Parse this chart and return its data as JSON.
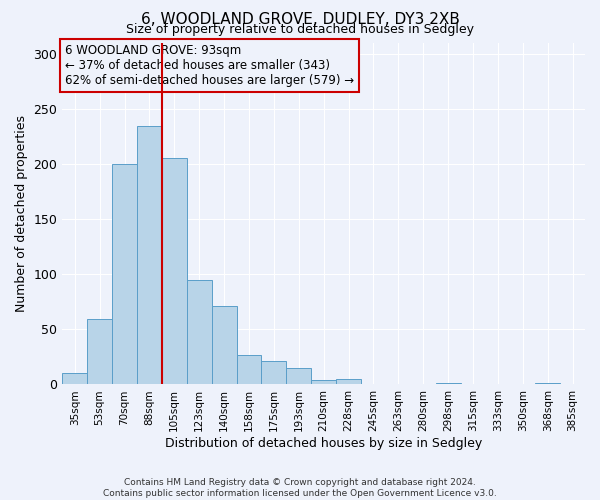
{
  "title": "6, WOODLAND GROVE, DUDLEY, DY3 2XB",
  "subtitle": "Size of property relative to detached houses in Sedgley",
  "xlabel": "Distribution of detached houses by size in Sedgley",
  "ylabel": "Number of detached properties",
  "footer_line1": "Contains HM Land Registry data © Crown copyright and database right 2024.",
  "footer_line2": "Contains public sector information licensed under the Open Government Licence v3.0.",
  "bin_labels": [
    "35sqm",
    "53sqm",
    "70sqm",
    "88sqm",
    "105sqm",
    "123sqm",
    "140sqm",
    "158sqm",
    "175sqm",
    "193sqm",
    "210sqm",
    "228sqm",
    "245sqm",
    "263sqm",
    "280sqm",
    "298sqm",
    "315sqm",
    "333sqm",
    "350sqm",
    "368sqm",
    "385sqm"
  ],
  "bar_values": [
    10,
    59,
    200,
    234,
    205,
    95,
    71,
    27,
    21,
    15,
    4,
    5,
    0,
    0,
    0,
    1,
    0,
    0,
    0,
    1,
    0
  ],
  "bar_color": "#b8d4e8",
  "bar_edge_color": "#5a9ec9",
  "ylim": [
    0,
    310
  ],
  "yticks": [
    0,
    50,
    100,
    150,
    200,
    250,
    300
  ],
  "vline_x_index": 3.5,
  "vline_color": "#cc0000",
  "annotation_box_text_line1": "6 WOODLAND GROVE: 93sqm",
  "annotation_box_text_line2": "← 37% of detached houses are smaller (343)",
  "annotation_box_text_line3": "62% of semi-detached houses are larger (579) →",
  "annotation_box_edge_color": "#cc0000",
  "background_color": "#eef2fb",
  "grid_color": "#ffffff"
}
